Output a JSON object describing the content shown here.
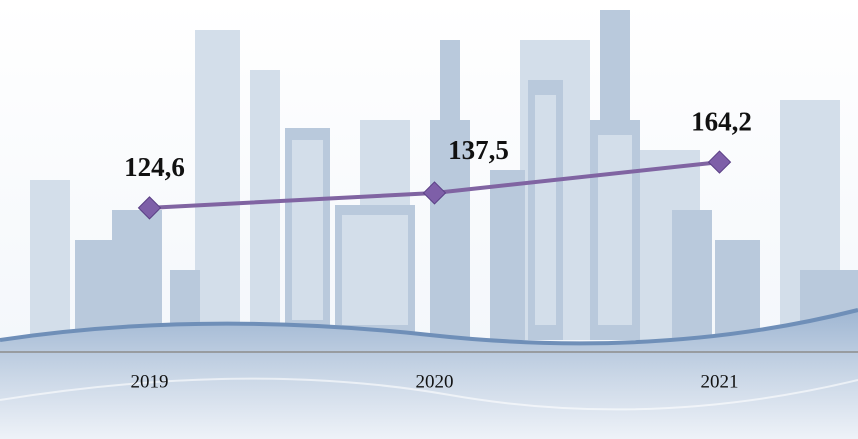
{
  "chart_data": {
    "type": "line",
    "categories": [
      "2019",
      "2020",
      "2021"
    ],
    "values": [
      124.6,
      137.5,
      164.2
    ],
    "value_labels": [
      "124,6",
      "137,5",
      "164,2"
    ],
    "color": "#8064a2",
    "ylim": [
      0,
      300
    ]
  }
}
